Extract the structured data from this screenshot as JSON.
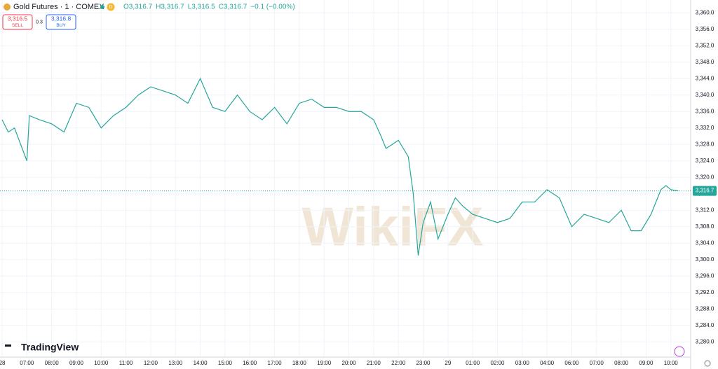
{
  "header": {
    "symbol": "Gold Futures · 1 · COMEX",
    "interval_badge": "D",
    "ohlc": [
      "O3,316.7",
      "H3,316.7",
      "L3,316.5",
      "C3,316.7",
      "−0.1 (−0.00%)"
    ],
    "sell_price": "3,316.5",
    "sell_label": "SELL",
    "spread": "0.3",
    "buy_price": "3,316.8",
    "buy_label": "BUY",
    "brand": "TradingView",
    "watermark": "WikiFX"
  },
  "chart_data": {
    "type": "line",
    "x": [
      0,
      0.25,
      0.5,
      1.0,
      1.1,
      1.5,
      2.0,
      2.5,
      3.0,
      3.5,
      4.0,
      4.5,
      5.0,
      5.5,
      6.0,
      6.5,
      7.0,
      7.5,
      8.0,
      8.5,
      9.0,
      9.5,
      10.0,
      10.5,
      11.0,
      11.5,
      12.0,
      12.5,
      13.0,
      13.5,
      14.0,
      14.5,
      15.0,
      15.3,
      15.5,
      16.0,
      16.4,
      16.6,
      16.8,
      17.0,
      17.3,
      17.6,
      18.0,
      18.3,
      18.6,
      19.0,
      19.5,
      20.0,
      20.5,
      21.0,
      21.5,
      22.0,
      22.5,
      23.0,
      23.5,
      24.0,
      24.5,
      25.0,
      25.4,
      25.8,
      26.2,
      26.6,
      26.8,
      27.0,
      27.3
    ],
    "series": [
      {
        "name": "Gold Futures",
        "color": "#26a69a",
        "values": [
          3334,
          3331,
          3332,
          3324,
          3335,
          3334,
          3333,
          3331,
          3338,
          3337,
          3332,
          3335,
          3337,
          3340,
          3342,
          3341,
          3340,
          3338,
          3344,
          3337,
          3336,
          3340,
          3336,
          3334,
          3337,
          3333,
          3338,
          3339,
          3337,
          3337,
          3336,
          3336,
          3334,
          3330,
          3327,
          3329,
          3325,
          3316,
          3301,
          3309,
          3314,
          3305,
          3311,
          3315,
          3313,
          3311,
          3310,
          3309,
          3310,
          3314,
          3314,
          3317,
          3315,
          3308,
          3311,
          3310,
          3309,
          3312,
          3307,
          3307,
          3311,
          3317,
          3318,
          3317,
          3316.7
        ]
      }
    ],
    "last_price": {
      "value": 3316.7,
      "label": "3,316.7",
      "color": "#26a69a"
    },
    "xlim": [
      -0.085,
      27.8
    ],
    "xticks": [
      {
        "value": 0,
        "label": "28"
      },
      {
        "value": 1,
        "label": "07:00"
      },
      {
        "value": 2,
        "label": "08:00"
      },
      {
        "value": 3,
        "label": "09:00"
      },
      {
        "value": 4,
        "label": "10:00"
      },
      {
        "value": 5,
        "label": "11:00"
      },
      {
        "value": 6,
        "label": "12:00"
      },
      {
        "value": 7,
        "label": "13:00"
      },
      {
        "value": 8,
        "label": "14:00"
      },
      {
        "value": 9,
        "label": "15:00"
      },
      {
        "value": 10,
        "label": "16:00"
      },
      {
        "value": 11,
        "label": "17:00"
      },
      {
        "value": 12,
        "label": "18:00"
      },
      {
        "value": 13,
        "label": "19:00"
      },
      {
        "value": 14,
        "label": "20:00"
      },
      {
        "value": 15,
        "label": "21:00"
      },
      {
        "value": 16,
        "label": "22:00"
      },
      {
        "value": 17,
        "label": "23:00"
      },
      {
        "value": 18,
        "label": "29"
      },
      {
        "value": 19,
        "label": "01:00"
      },
      {
        "value": 20,
        "label": "02:00"
      },
      {
        "value": 21,
        "label": "03:00"
      },
      {
        "value": 22,
        "label": "04:00"
      },
      {
        "value": 23,
        "label": "06:00"
      },
      {
        "value": 24,
        "label": "07:00"
      },
      {
        "value": 25,
        "label": "08:00"
      },
      {
        "value": 26,
        "label": "09:00"
      },
      {
        "value": 27,
        "label": "10:00"
      }
    ],
    "ylim": [
      3276.3,
      3363.1
    ],
    "yticks": [
      {
        "value": 3280,
        "label": "3,280.0"
      },
      {
        "value": 3284,
        "label": "3,284.0"
      },
      {
        "value": 3288,
        "label": "3,288.0"
      },
      {
        "value": 3292,
        "label": "3,292.0"
      },
      {
        "value": 3296,
        "label": "3,296.0"
      },
      {
        "value": 3300,
        "label": "3,300.0"
      },
      {
        "value": 3304,
        "label": "3,304.0"
      },
      {
        "value": 3308,
        "label": "3,308.0"
      },
      {
        "value": 3312,
        "label": "3,312.0"
      },
      {
        "value": 3316,
        "label": "3,316.0"
      },
      {
        "value": 3320,
        "label": "3,320.0"
      },
      {
        "value": 3324,
        "label": "3,324.0"
      },
      {
        "value": 3328,
        "label": "3,328.0"
      },
      {
        "value": 3332,
        "label": "3,332.0"
      },
      {
        "value": 3336,
        "label": "3,336.0"
      },
      {
        "value": 3340,
        "label": "3,340.0"
      },
      {
        "value": 3344,
        "label": "3,344.0"
      },
      {
        "value": 3348,
        "label": "3,348.0"
      },
      {
        "value": 3352,
        "label": "3,352.0"
      },
      {
        "value": 3356,
        "label": "3,356.0"
      },
      {
        "value": 3360,
        "label": "3,360.0"
      }
    ],
    "grid": true
  }
}
